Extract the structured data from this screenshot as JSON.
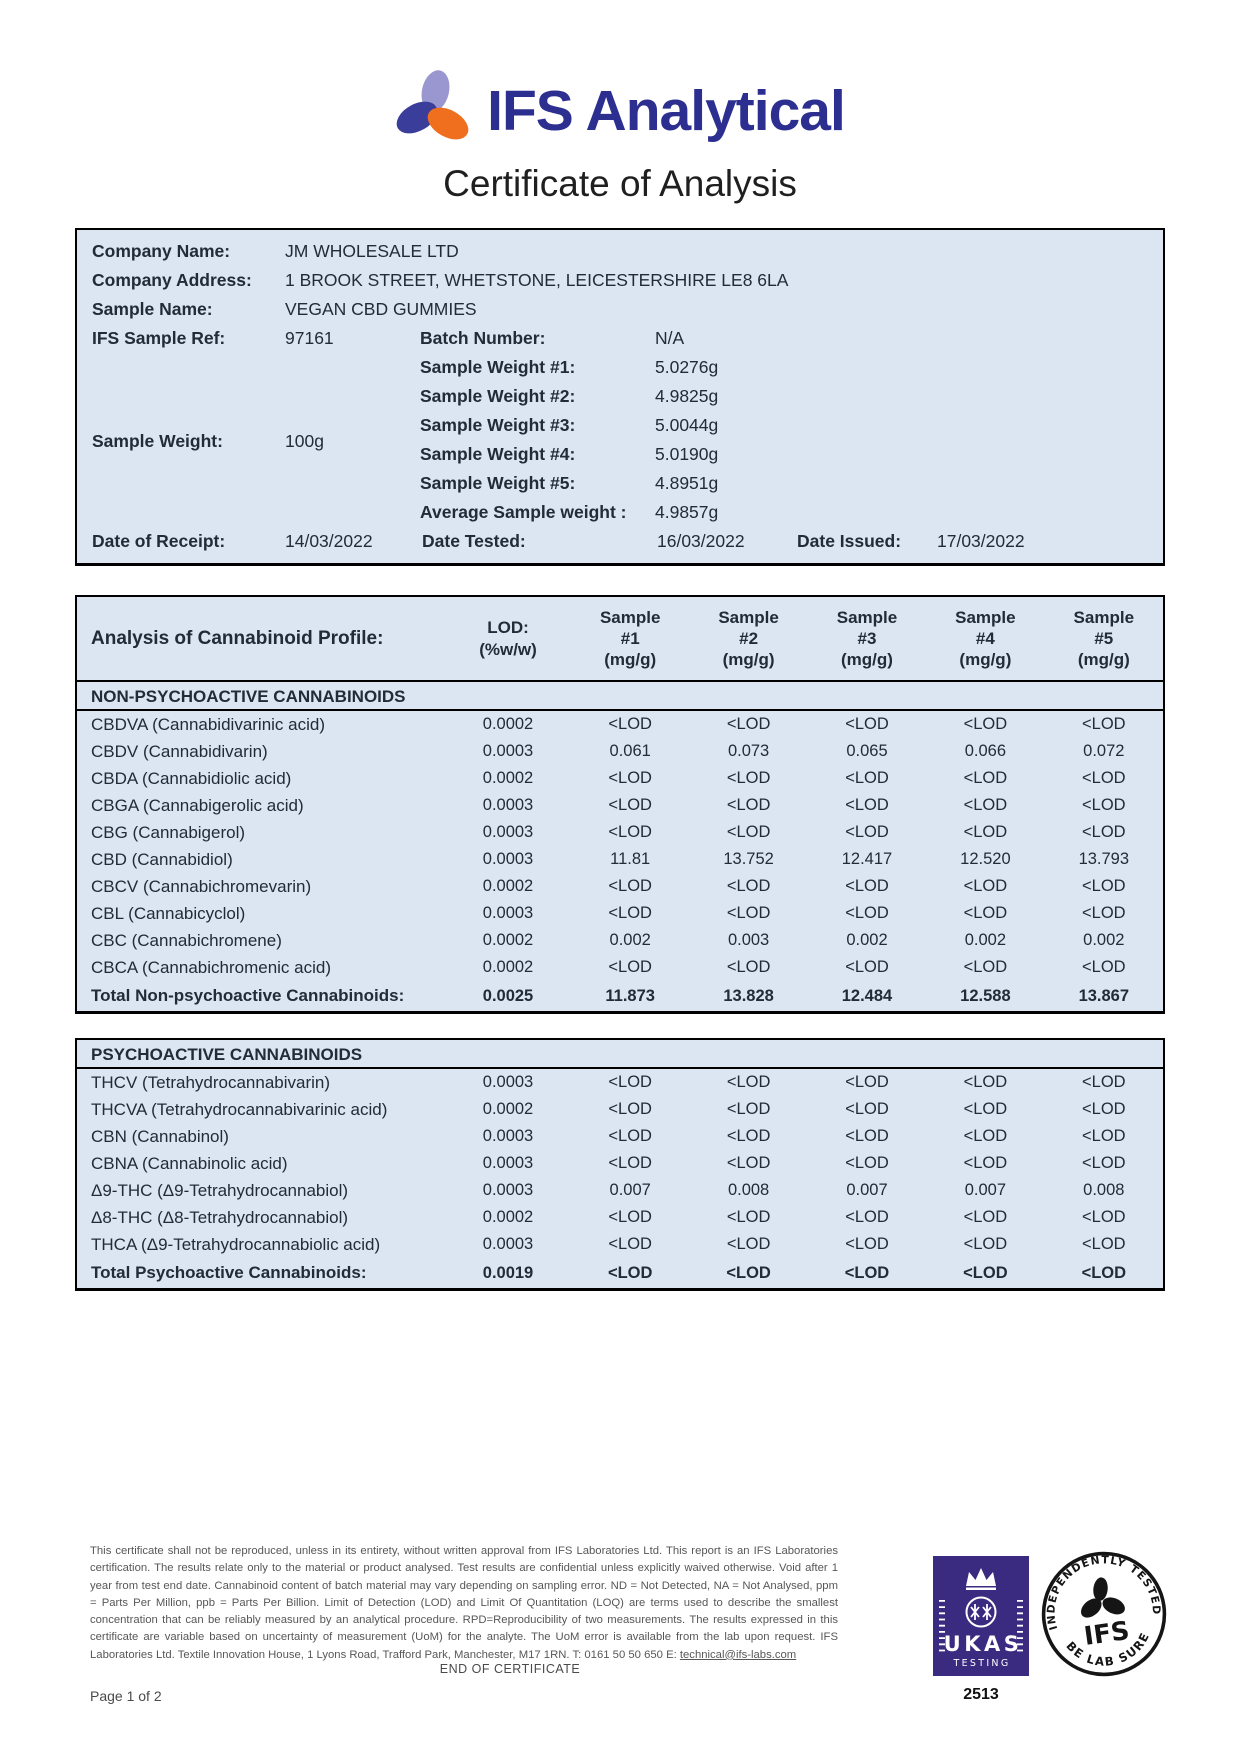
{
  "header": {
    "brand": "IFS Analytical",
    "title": "Certificate of Analysis"
  },
  "info": {
    "company_name": {
      "label": "Company Name:",
      "value": "JM WHOLESALE LTD"
    },
    "company_address": {
      "label": "Company Address:",
      "value": "1 BROOK STREET, WHETSTONE, LEICESTERSHIRE LE8 6LA"
    },
    "sample_name": {
      "label": "Sample Name:",
      "value": "VEGAN CBD GUMMIES"
    },
    "ifs_sample_ref": {
      "label": "IFS Sample Ref:",
      "value": "97161"
    },
    "sample_weight": {
      "label": "Sample Weight:",
      "value": "100g"
    },
    "batch_number": {
      "label": "Batch Number:",
      "value": "N/A"
    },
    "sample_weights": [
      {
        "label": "Sample Weight #1:",
        "value": "5.0276g"
      },
      {
        "label": "Sample Weight #2:",
        "value": "4.9825g"
      },
      {
        "label": "Sample Weight #3:",
        "value": "5.0044g"
      },
      {
        "label": "Sample Weight #4:",
        "value": "5.0190g"
      },
      {
        "label": "Sample Weight #5:",
        "value": "4.8951g"
      },
      {
        "label": "Average Sample weight :",
        "value": "4.9857g"
      }
    ],
    "date_of_receipt": {
      "label": "Date of Receipt:",
      "value": "14/03/2022"
    },
    "date_tested": {
      "label": "Date Tested:",
      "value": "16/03/2022"
    },
    "date_issued": {
      "label": "Date Issued:",
      "value": "17/03/2022"
    }
  },
  "profile": {
    "title": "Analysis of Cannabinoid Profile:",
    "lod_header": "LOD:\n(%w/w)",
    "sample_headers": [
      "Sample\n#1\n(mg/g)",
      "Sample\n#2\n(mg/g)",
      "Sample\n#3\n(mg/g)",
      "Sample\n#4\n(mg/g)",
      "Sample\n#5\n(mg/g)"
    ],
    "sections": [
      {
        "name": "NON-PSYCHOACTIVE CANNABINOIDS",
        "rows": [
          [
            "CBDVA (Cannabidivarinic acid)",
            "0.0002",
            "<LOD",
            "<LOD",
            "<LOD",
            "<LOD",
            "<LOD"
          ],
          [
            "CBDV (Cannabidivarin)",
            "0.0003",
            "0.061",
            "0.073",
            "0.065",
            "0.066",
            "0.072"
          ],
          [
            "CBDA (Cannabidiolic acid)",
            "0.0002",
            "<LOD",
            "<LOD",
            "<LOD",
            "<LOD",
            "<LOD"
          ],
          [
            "CBGA (Cannabigerolic acid)",
            "0.0003",
            "<LOD",
            "<LOD",
            "<LOD",
            "<LOD",
            "<LOD"
          ],
          [
            "CBG (Cannabigerol)",
            "0.0003",
            "<LOD",
            "<LOD",
            "<LOD",
            "<LOD",
            "<LOD"
          ],
          [
            "CBD (Cannabidiol)",
            "0.0003",
            "11.81",
            "13.752",
            "12.417",
            "12.520",
            "13.793"
          ],
          [
            "CBCV (Cannabichromevarin)",
            "0.0002",
            "<LOD",
            "<LOD",
            "<LOD",
            "<LOD",
            "<LOD"
          ],
          [
            "CBL (Cannabicyclol)",
            "0.0003",
            "<LOD",
            "<LOD",
            "<LOD",
            "<LOD",
            "<LOD"
          ],
          [
            "CBC (Cannabichromene)",
            "0.0002",
            "0.002",
            "0.003",
            "0.002",
            "0.002",
            "0.002"
          ],
          [
            "CBCA (Cannabichromenic acid)",
            "0.0002",
            "<LOD",
            "<LOD",
            "<LOD",
            "<LOD",
            "<LOD"
          ]
        ],
        "total_row": [
          "Total Non-psychoactive Cannabinoids:",
          "0.0025",
          "11.873",
          "13.828",
          "12.484",
          "12.588",
          "13.867"
        ]
      },
      {
        "name": "PSYCHOACTIVE CANNABINOIDS",
        "rows": [
          [
            "THCV (Tetrahydrocannabivarin)",
            "0.0003",
            "<LOD",
            "<LOD",
            "<LOD",
            "<LOD",
            "<LOD"
          ],
          [
            "THCVA (Tetrahydrocannabivarinic acid)",
            "0.0002",
            "<LOD",
            "<LOD",
            "<LOD",
            "<LOD",
            "<LOD"
          ],
          [
            "CBN (Cannabinol)",
            "0.0003",
            "<LOD",
            "<LOD",
            "<LOD",
            "<LOD",
            "<LOD"
          ],
          [
            "CBNA (Cannabinolic acid)",
            "0.0003",
            "<LOD",
            "<LOD",
            "<LOD",
            "<LOD",
            "<LOD"
          ],
          [
            "Δ9-THC (Δ9-Tetrahydrocannabiol)",
            "0.0003",
            "0.007",
            "0.008",
            "0.007",
            "0.007",
            "0.008"
          ],
          [
            "Δ8-THC (Δ8-Tetrahydrocannabiol)",
            "0.0002",
            "<LOD",
            "<LOD",
            "<LOD",
            "<LOD",
            "<LOD"
          ],
          [
            "THCA (Δ9-Tetrahydrocannabiolic acid)",
            "0.0003",
            "<LOD",
            "<LOD",
            "<LOD",
            "<LOD",
            "<LOD"
          ]
        ],
        "total_row": [
          "Total Psychoactive Cannabinoids:",
          "0.0019",
          "<LOD",
          "<LOD",
          "<LOD",
          "<LOD",
          "<LOD"
        ]
      }
    ]
  },
  "footer": {
    "disclaimer": "This certificate shall not be reproduced, unless in its entirety, without written approval from IFS Laboratories Ltd. This report is an IFS Laboratories certification. The results relate only to the material or product analysed. Test results are confidential unless explicitly waived otherwise. Void after 1 year from test end date. Cannabinoid content of batch material may vary depending on sampling error. ND = Not Detected, NA = Not Analysed, ppm = Parts Per Million, ppb = Parts Per Billion. Limit of Detection (LOD) and Limit Of Quantitation (LOQ) are terms used to describe the smallest concentration that can be reliably measured by an analytical procedure. RPD=Reproducibility of two measurements. The results expressed in this certificate are variable based on uncertainty of measurement (UoM) for the analyte. The UoM error is available from the lab upon request. IFS Laboratories Ltd. Textile Innovation House, 1 Lyons Road, Trafford Park, Manchester, M17 1RN. T: 0161 50 50 650 E: ",
    "email": "technical@ifs-labs.com",
    "end_text": "END OF CERTIFICATE",
    "page": "Page 1 of 2",
    "ukas": {
      "name": "UKAS",
      "sub": "TESTING",
      "number": "2513"
    },
    "ifs_stamp": {
      "top": "INDEPENDENTLY TESTED",
      "center": "IFS",
      "bottom": "BE LAB SURE"
    }
  },
  "colors": {
    "brand_navy": "#2c2f90",
    "logo_lavender": "#9a96cf",
    "logo_blue": "#3a3d99",
    "logo_orange": "#f06f1f",
    "table_bg": "#dce6f2",
    "ukas_purple": "#3b2b80",
    "text_dark": "#222b38",
    "muted": "#575757"
  }
}
